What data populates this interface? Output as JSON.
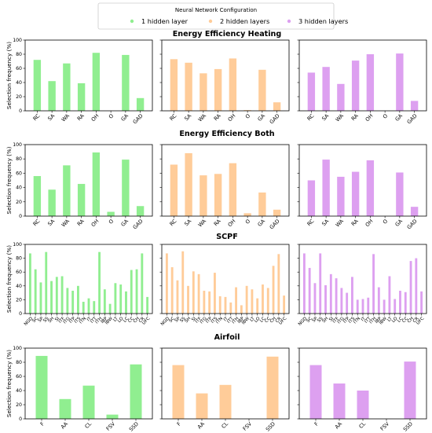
{
  "legend": {
    "title": "Neural Network Configuration",
    "placement": "top-center",
    "entries": [
      {
        "label": "1 hidden layer",
        "color": "#90ee90"
      },
      {
        "label": "2 hidden layers",
        "color": "#ffcc99"
      },
      {
        "label": "3 hidden layers",
        "color": "#dda0f0"
      }
    ]
  },
  "ylabel": "Selection frequency (%)",
  "chart_data": [
    {
      "type": "bar",
      "title": "Energy Efficiency Heating",
      "categories": [
        "RC",
        "SA",
        "WA",
        "RA",
        "OH",
        "O",
        "GA",
        "GAD"
      ],
      "ylim": [
        0,
        100
      ],
      "yticks": [
        0,
        20,
        40,
        60,
        80,
        100
      ],
      "ylabel": "Selection frequency (%)",
      "grid": false,
      "series": [
        {
          "name": "1 hidden layer",
          "values": [
            72,
            42,
            67,
            39,
            82,
            0,
            79,
            18
          ]
        },
        {
          "name": "2 hidden layers",
          "values": [
            73,
            68,
            53,
            59,
            74,
            1,
            58,
            12
          ]
        },
        {
          "name": "3 hidden layers",
          "values": [
            54,
            62,
            38,
            71,
            80,
            0,
            81,
            14
          ]
        }
      ]
    },
    {
      "type": "bar",
      "title": "Energy Efficiency Both",
      "categories": [
        "RC",
        "SA",
        "WA",
        "RA",
        "OH",
        "O",
        "GA",
        "GAD"
      ],
      "ylim": [
        0,
        100
      ],
      "yticks": [
        0,
        20,
        40,
        60,
        80,
        100
      ],
      "ylabel": "Selection frequency (%)",
      "grid": false,
      "series": [
        {
          "name": "1 hidden layer",
          "values": [
            56,
            37,
            71,
            45,
            89,
            6,
            79,
            14
          ]
        },
        {
          "name": "2 hidden layers",
          "values": [
            72,
            88,
            57,
            59,
            74,
            4,
            33,
            9
          ]
        },
        {
          "name": "3 hidden layers",
          "values": [
            50,
            79,
            55,
            62,
            78,
            0,
            61,
            13
          ]
        }
      ]
    },
    {
      "type": "bar",
      "title": "SCPF",
      "categories": [
        "NGD",
        "SC",
        "SP",
        "SS",
        "SH",
        "SI",
        "ITF",
        "ITG",
        "ITP",
        "ITS",
        "ITN",
        "IT",
        "ITT",
        "ITH",
        "IBP",
        "IBW",
        "LT",
        "LO",
        "LC",
        "CC",
        "CH",
        "CR",
        "UFC"
      ],
      "ylim": [
        0,
        100
      ],
      "yticks": [
        0,
        20,
        40,
        60,
        80,
        100
      ],
      "ylabel": "Selection frequency (%)",
      "grid": false,
      "series": [
        {
          "name": "1 hidden layer",
          "values": [
            87,
            64,
            45,
            89,
            47,
            53,
            54,
            37,
            33,
            40,
            17,
            22,
            18,
            89,
            35,
            14,
            44,
            42,
            32,
            63,
            64,
            87,
            24
          ]
        },
        {
          "name": "2 hidden layers",
          "values": [
            87,
            67,
            48,
            90,
            40,
            61,
            57,
            33,
            32,
            59,
            25,
            24,
            16,
            38,
            12,
            40,
            35,
            22,
            42,
            37,
            69,
            86,
            26
          ]
        },
        {
          "name": "3 hidden layers",
          "values": [
            87,
            66,
            44,
            87,
            41,
            57,
            51,
            37,
            30,
            53,
            20,
            21,
            23,
            86,
            38,
            20,
            54,
            21,
            33,
            31,
            76,
            80,
            32
          ]
        }
      ]
    },
    {
      "type": "bar",
      "title": "Airfoil",
      "categories": [
        "F",
        "AA",
        "CL",
        "FSV",
        "SSD"
      ],
      "ylim": [
        0,
        100
      ],
      "yticks": [
        0,
        20,
        40,
        60,
        80,
        100
      ],
      "ylabel": "Selection frequency (%)",
      "grid": false,
      "series": [
        {
          "name": "1 hidden layer",
          "values": [
            89,
            28,
            47,
            6,
            77
          ]
        },
        {
          "name": "2 hidden layers",
          "values": [
            76,
            36,
            48,
            0,
            88
          ]
        },
        {
          "name": "3 hidden layers",
          "values": [
            76,
            50,
            40,
            0,
            81
          ]
        }
      ]
    }
  ]
}
